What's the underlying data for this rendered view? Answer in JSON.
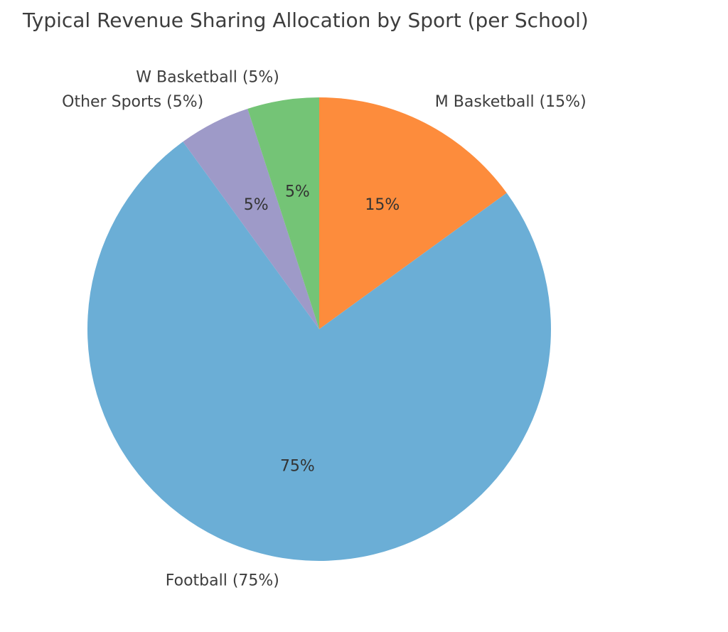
{
  "chart_data": {
    "type": "pie",
    "title": "Typical Revenue Sharing Allocation by Sport (per School)",
    "start_angle_deg": 90,
    "direction": "clockwise",
    "slices": [
      {
        "label": "M Basketball (15%)",
        "value": 15,
        "pct_label": "15%",
        "color": "#fd8c3c"
      },
      {
        "label": "Football (75%)",
        "value": 75,
        "pct_label": "75%",
        "color": "#6baed6"
      },
      {
        "label": "Other Sports (5%)",
        "value": 5,
        "pct_label": "5%",
        "color": "#9e9ac8"
      },
      {
        "label": "W Basketball (5%)",
        "value": 5,
        "pct_label": "5%",
        "color": "#74c476"
      }
    ]
  }
}
